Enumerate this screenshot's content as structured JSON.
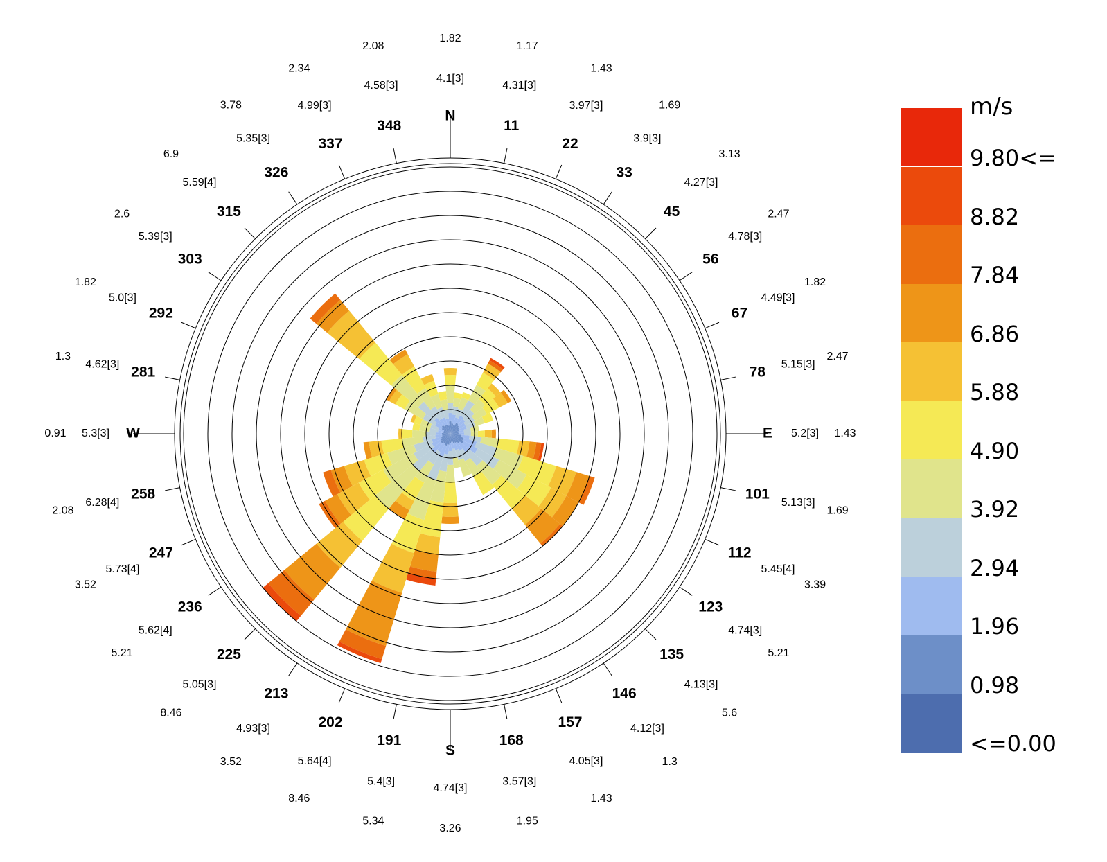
{
  "chart_data": {
    "type": "polar-bar",
    "title": "",
    "cardinals": {
      "N": "N",
      "E": "E",
      "S": "S",
      "W": "W"
    },
    "directions": [
      {
        "label": "N",
        "angle": 0,
        "mean": "4.1[3]",
        "freq": "1.82"
      },
      {
        "label": "11",
        "angle": 11.25,
        "mean": "4.31[3]",
        "freq": "1.17"
      },
      {
        "label": "22",
        "angle": 22.5,
        "mean": "3.97[3]",
        "freq": "1.43"
      },
      {
        "label": "33",
        "angle": 33.75,
        "mean": "3.9[3]",
        "freq": "1.69"
      },
      {
        "label": "45",
        "angle": 45,
        "mean": "4.27[3]",
        "freq": "3.13"
      },
      {
        "label": "56",
        "angle": 56.25,
        "mean": "4.78[3]",
        "freq": "2.47"
      },
      {
        "label": "67",
        "angle": 67.5,
        "mean": "4.49[3]",
        "freq": "1.82"
      },
      {
        "label": "78",
        "angle": 78.75,
        "mean": "5.15[3]",
        "freq": "2.47"
      },
      {
        "label": "E",
        "angle": 90,
        "mean": "5.2[3]",
        "freq": "1.43"
      },
      {
        "label": "101",
        "angle": 101.25,
        "mean": "5.13[3]",
        "freq": "1.69"
      },
      {
        "label": "112",
        "angle": 112.5,
        "mean": "5.45[4]",
        "freq": "3.39"
      },
      {
        "label": "123",
        "angle": 123.75,
        "mean": "4.74[3]",
        "freq": "5.21"
      },
      {
        "label": "135",
        "angle": 135,
        "mean": "4.13[3]",
        "freq": "5.6"
      },
      {
        "label": "146",
        "angle": 146.25,
        "mean": "4.12[3]",
        "freq": "1.3"
      },
      {
        "label": "157",
        "angle": 157.5,
        "mean": "4.05[3]",
        "freq": "1.43"
      },
      {
        "label": "168",
        "angle": 168.75,
        "mean": "3.57[3]",
        "freq": "1.95"
      },
      {
        "label": "S",
        "angle": 180,
        "mean": "4.74[3]",
        "freq": "3.26"
      },
      {
        "label": "191",
        "angle": 191.25,
        "mean": "5.4[3]",
        "freq": "5.34"
      },
      {
        "label": "202",
        "angle": 202.5,
        "mean": "5.64[4]",
        "freq": "8.46"
      },
      {
        "label": "213",
        "angle": 213.75,
        "mean": "4.93[3]",
        "freq": "3.52"
      },
      {
        "label": "225",
        "angle": 225,
        "mean": "5.05[3]",
        "freq": "8.46"
      },
      {
        "label": "236",
        "angle": 236.25,
        "mean": "5.62[4]",
        "freq": "5.21"
      },
      {
        "label": "247",
        "angle": 247.5,
        "mean": "5.73[4]",
        "freq": "3.52"
      },
      {
        "label": "258",
        "angle": 258.75,
        "mean": "6.28[4]",
        "freq": "2.08"
      },
      {
        "label": "W",
        "angle": 270,
        "mean": "5.3[3]",
        "freq": "0.91"
      },
      {
        "label": "281",
        "angle": 281.25,
        "mean": "4.62[3]",
        "freq": "1.3"
      },
      {
        "label": "292",
        "angle": 292.5,
        "mean": "5.0[3]",
        "freq": "1.82"
      },
      {
        "label": "303",
        "angle": 303.75,
        "mean": "5.39[3]",
        "freq": "2.6"
      },
      {
        "label": "315",
        "angle": 315,
        "mean": "5.59[4]",
        "freq": "6.9"
      },
      {
        "label": "326",
        "angle": 326.25,
        "mean": "5.35[3]",
        "freq": "3.78"
      },
      {
        "label": "337",
        "angle": 337.5,
        "mean": "4.99[3]",
        "freq": "2.34"
      },
      {
        "label": "348",
        "angle": 348.75,
        "mean": "4.58[3]",
        "freq": "2.08"
      }
    ],
    "legend": {
      "unit": "m/s",
      "bins": [
        {
          "label": "9.80<=",
          "color": "#e8280a"
        },
        {
          "label": "8.82",
          "color": "#eb4a0c"
        },
        {
          "label": "7.84",
          "color": "#eb6e0f"
        },
        {
          "label": "6.86",
          "color": "#ee9518"
        },
        {
          "label": "5.88",
          "color": "#f5c134"
        },
        {
          "label": "4.90",
          "color": "#f5e955"
        },
        {
          "label": "3.92",
          "color": "#e0e48c"
        },
        {
          "label": "2.94",
          "color": "#bcd0db"
        },
        {
          "label": "1.96",
          "color": "#9fbbef"
        },
        {
          "label": "0.98",
          "color": "#6d8fc8"
        },
        {
          "label": "<=0.00",
          "color": "#4d6dae"
        }
      ]
    }
  }
}
